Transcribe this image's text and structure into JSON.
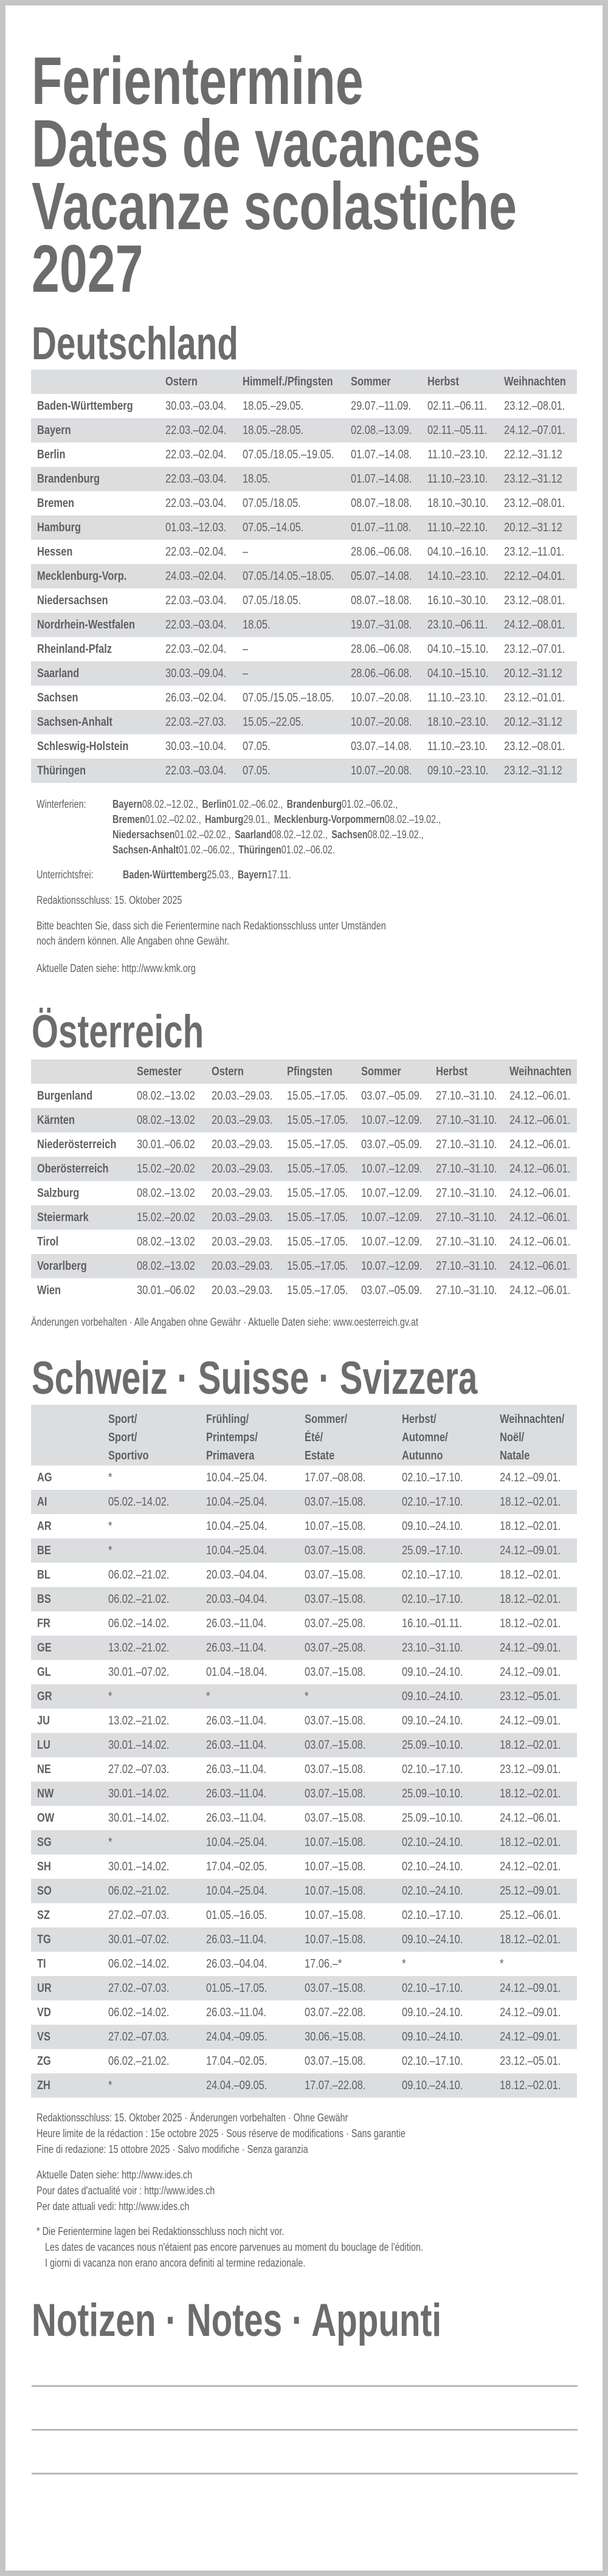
{
  "title": {
    "lines": [
      "Ferientermine",
      "Dates de vacances",
      "Vacanze scolastiche",
      "2027"
    ]
  },
  "colors": {
    "frame": "#c4c5c7",
    "text": "#6b6c6e",
    "row_stripe": "#dcdddf"
  },
  "deutschland": {
    "heading": "Deutschland",
    "headers": [
      "",
      "Ostern",
      "Himmelf./Pfingsten",
      "Sommer",
      "Herbst",
      "Weihnachten"
    ],
    "rows": [
      [
        "Baden-Württemberg",
        "30.03.–03.04.",
        "18.05.–29.05.",
        "29.07.–11.09.",
        "02.11.–06.11.",
        "23.12.–08.01."
      ],
      [
        "Bayern",
        "22.03.–02.04.",
        "18.05.–28.05.",
        "02.08.–13.09.",
        "02.11.–05.11.",
        "24.12.–07.01."
      ],
      [
        "Berlin",
        "22.03.–02.04.",
        "07.05./18.05.–19.05.",
        "01.07.–14.08.",
        "11.10.–23.10.",
        "22.12.–31.12"
      ],
      [
        "Brandenburg",
        "22.03.–03.04.",
        "18.05.",
        "01.07.–14.08.",
        "11.10.–23.10.",
        "23.12.–31.12"
      ],
      [
        "Bremen",
        "22.03.–03.04.",
        "07.05./18.05.",
        "08.07.–18.08.",
        "18.10.–30.10.",
        "23.12.–08.01."
      ],
      [
        "Hamburg",
        "01.03.–12.03.",
        "07.05.–14.05.",
        "01.07.–11.08.",
        "11.10.–22.10.",
        "20.12.–31.12"
      ],
      [
        "Hessen",
        "22.03.–02.04.",
        "–",
        "28.06.–06.08.",
        "04.10.–16.10.",
        "23.12.–11.01."
      ],
      [
        "Mecklenburg-Vorp.",
        "24.03.–02.04.",
        "07.05./14.05.–18.05.",
        "05.07.–14.08.",
        "14.10.–23.10.",
        "22.12.–04.01."
      ],
      [
        "Niedersachsen",
        "22.03.–03.04.",
        "07.05./18.05.",
        "08.07.–18.08.",
        "16.10.–30.10.",
        "23.12.–08.01."
      ],
      [
        "Nordrhein-Westfalen",
        "22.03.–03.04.",
        "18.05.",
        "19.07.–31.08.",
        "23.10.–06.11.",
        "24.12.–08.01."
      ],
      [
        "Rheinland-Pfalz",
        "22.03.–02.04.",
        "–",
        "28.06.–06.08.",
        "04.10.–15.10.",
        "23.12.–07.01."
      ],
      [
        "Saarland",
        "30.03.–09.04.",
        "–",
        "28.06.–06.08.",
        "04.10.–15.10.",
        "20.12.–31.12"
      ],
      [
        "Sachsen",
        "26.03.–02.04.",
        "07.05./15.05.–18.05.",
        "10.07.–20.08.",
        "11.10.–23.10.",
        "23.12.–01.01."
      ],
      [
        "Sachsen-Anhalt",
        "22.03.–27.03.",
        "15.05.–22.05.",
        "10.07.–20.08.",
        "18.10.–23.10.",
        "20.12.–31.12"
      ],
      [
        "Schleswig-Holstein",
        "30.03.–10.04.",
        "07.05.",
        "03.07.–14.08.",
        "11.10.–23.10.",
        "23.12.–08.01."
      ],
      [
        "Thüringen",
        "22.03.–03.04.",
        "07.05.",
        "10.07.–20.08.",
        "09.10.–23.10.",
        "23.12.–31.12"
      ]
    ],
    "winter_label": "Winterferien:",
    "winter_lines": [
      [
        [
          "Bayern",
          "08.02.–12.02.,"
        ],
        [
          "Berlin",
          "01.02.–06.02.,"
        ],
        [
          "Brandenburg",
          "01.02.–06.02.,"
        ]
      ],
      [
        [
          "Bremen",
          "01.02.–02.02.,"
        ],
        [
          "Hamburg",
          "29.01.,"
        ],
        [
          "Mecklenburg-Vorpommern",
          "08.02.–19.02.,"
        ]
      ],
      [
        [
          "Niedersachsen",
          "01.02.–02.02.,"
        ],
        [
          "Saarland",
          "08.02.–12.02.,"
        ],
        [
          "Sachsen",
          "08.02.–19.02.,"
        ]
      ],
      [
        [
          "Sachsen-Anhalt",
          "01.02.–06.02.,"
        ],
        [
          "Thüringen",
          "01.02.–06.02."
        ]
      ]
    ],
    "unterrichtsfrei_label": "Unterrichtsfrei:",
    "unterrichtsfrei": [
      [
        "Baden-Württemberg",
        "25.03.,"
      ],
      [
        "Bayern",
        "17.11."
      ]
    ],
    "redaktionsschluss": "Redaktionsschluss: 15. Oktober 2025",
    "hinweis": [
      "Bitte beachten Sie, dass sich die Ferientermine nach Redaktionsschluss unter Umständen",
      "noch ändern können. Alle Angaben ohne Gewähr."
    ],
    "aktuell": "Aktuelle Daten siehe: http://www.kmk.org"
  },
  "oesterreich": {
    "heading": "Österreich",
    "headers": [
      "",
      "Semester",
      "Ostern",
      "Pfingsten",
      "Sommer",
      "Herbst",
      "Weihnachten"
    ],
    "rows": [
      [
        "Burgenland",
        "08.02.–13.02",
        "20.03.–29.03.",
        "15.05.–17.05.",
        "03.07.–05.09.",
        "27.10.–31.10.",
        "24.12.–06.01."
      ],
      [
        "Kärnten",
        "08.02.–13.02",
        "20.03.–29.03.",
        "15.05.–17.05.",
        "10.07.–12.09.",
        "27.10.–31.10.",
        "24.12.–06.01."
      ],
      [
        "Niederösterreich",
        "30.01.–06.02",
        "20.03.–29.03.",
        "15.05.–17.05.",
        "03.07.–05.09.",
        "27.10.–31.10.",
        "24.12.–06.01."
      ],
      [
        "Oberösterreich",
        "15.02.–20.02",
        "20.03.–29.03.",
        "15.05.–17.05.",
        "10.07.–12.09.",
        "27.10.–31.10.",
        "24.12.–06.01."
      ],
      [
        "Salzburg",
        "08.02.–13.02",
        "20.03.–29.03.",
        "15.05.–17.05.",
        "10.07.–12.09.",
        "27.10.–31.10.",
        "24.12.–06.01."
      ],
      [
        "Steiermark",
        "15.02.–20.02",
        "20.03.–29.03.",
        "15.05.–17.05.",
        "10.07.–12.09.",
        "27.10.–31.10.",
        "24.12.–06.01."
      ],
      [
        "Tirol",
        "08.02.–13.02",
        "20.03.–29.03.",
        "15.05.–17.05.",
        "10.07.–12.09.",
        "27.10.–31.10.",
        "24.12.–06.01."
      ],
      [
        "Vorarlberg",
        "08.02.–13.02",
        "20.03.–29.03.",
        "15.05.–17.05.",
        "10.07.–12.09.",
        "27.10.–31.10.",
        "24.12.–06.01."
      ],
      [
        "Wien",
        "30.01.–06.02",
        "20.03.–29.03.",
        "15.05.–17.05.",
        "03.07.–05.09.",
        "27.10.–31.10.",
        "24.12.–06.01."
      ]
    ],
    "footer": "Änderungen vorbehalten · Alle Angaben ohne Gewähr · Aktuelle Daten siehe: www.oesterreich.gv.at"
  },
  "schweiz": {
    "heading": "Schweiz · Suisse · Svizzera",
    "headers": [
      [],
      [
        "Sport/",
        "Sport/",
        "Sportivo"
      ],
      [
        "Frühling/",
        "Printemps/",
        "Primavera"
      ],
      [
        "Sommer/",
        "Été/",
        "Estate"
      ],
      [
        "Herbst/",
        "Automne/",
        "Autunno"
      ],
      [
        "Weihnachten/",
        "Noël/",
        "Natale"
      ]
    ],
    "rows": [
      [
        "AG",
        "*",
        "10.04.–25.04.",
        "17.07.–08.08.",
        "02.10.–17.10.",
        "24.12.–09.01."
      ],
      [
        "AI",
        "05.02.–14.02.",
        "10.04.–25.04.",
        "03.07.–15.08.",
        "02.10.–17.10.",
        "18.12.–02.01."
      ],
      [
        "AR",
        "*",
        "10.04.–25.04.",
        "10.07.–15.08.",
        "09.10.–24.10.",
        "18.12.–02.01."
      ],
      [
        "BE",
        "*",
        "10.04.–25.04.",
        "03.07.–15.08.",
        "25.09.–17.10.",
        "24.12.–09.01."
      ],
      [
        "BL",
        "06.02.–21.02.",
        "20.03.–04.04.",
        "03.07.–15.08.",
        "02.10.–17.10.",
        "18.12.–02.01."
      ],
      [
        "BS",
        "06.02.–21.02.",
        "20.03.–04.04.",
        "03.07.–15.08.",
        "02.10.–17.10.",
        "18.12.–02.01."
      ],
      [
        "FR",
        "06.02.–14.02.",
        "26.03.–11.04.",
        "03.07.–25.08.",
        "16.10.–01.11.",
        "18.12.–02.01."
      ],
      [
        "GE",
        "13.02.–21.02.",
        "26.03.–11.04.",
        "03.07.–25.08.",
        "23.10.–31.10.",
        "24.12.–09.01."
      ],
      [
        "GL",
        "30.01.–07.02.",
        "01.04.–18.04.",
        "03.07.–15.08.",
        "09.10.–24.10.",
        "24.12.–09.01."
      ],
      [
        "GR",
        "*",
        "*",
        "*",
        "09.10.–24.10.",
        "23.12.–05.01."
      ],
      [
        "JU",
        "13.02.–21.02.",
        "26.03.–11.04.",
        "03.07.–15.08.",
        "09.10.–24.10.",
        "24.12.–09.01."
      ],
      [
        "LU",
        "30.01.–14.02.",
        "26.03.–11.04.",
        "03.07.–15.08.",
        "25.09.–10.10.",
        "18.12.–02.01."
      ],
      [
        "NE",
        "27.02.–07.03.",
        "26.03.–11.04.",
        "03.07.–15.08.",
        "02.10.–17.10.",
        "23.12.–09.01."
      ],
      [
        "NW",
        "30.01.–14.02.",
        "26.03.–11.04.",
        "03.07.–15.08.",
        "25.09.–10.10.",
        "18.12.–02.01."
      ],
      [
        "OW",
        "30.01.–14.02.",
        "26.03.–11.04.",
        "03.07.–15.08.",
        "25.09.–10.10.",
        "24.12.–06.01."
      ],
      [
        "SG",
        "*",
        "10.04.–25.04.",
        "10.07.–15.08.",
        "02.10.–24.10.",
        "18.12.–02.01."
      ],
      [
        "SH",
        "30.01.–14.02.",
        "17.04.–02.05.",
        "10.07.–15.08.",
        "02.10.–24.10.",
        "24.12.–02.01."
      ],
      [
        "SO",
        "06.02.–21.02.",
        "10.04.–25.04.",
        "10.07.–15.08.",
        "02.10.–24.10.",
        "25.12.–09.01."
      ],
      [
        "SZ",
        "27.02.–07.03.",
        "01.05.–16.05.",
        "10.07.–15.08.",
        "02.10.–17.10.",
        "25.12.–06.01."
      ],
      [
        "TG",
        "30.01.–07.02.",
        "26.03.–11.04.",
        "10.07.–15.08.",
        "09.10.–24.10.",
        "18.12.–02.01."
      ],
      [
        "TI",
        "06.02.–14.02.",
        "26.03.–04.04.",
        "17.06.–*",
        "*",
        "*"
      ],
      [
        "UR",
        "27.02.–07.03.",
        "01.05.–17.05.",
        "03.07.–15.08.",
        "02.10.–17.10.",
        "24.12.–09.01."
      ],
      [
        "VD",
        "06.02.–14.02.",
        "26.03.–11.04.",
        "03.07.–22.08.",
        "09.10.–24.10.",
        "24.12.–09.01."
      ],
      [
        "VS",
        "27.02.–07.03.",
        "24.04.–09.05.",
        "30.06.–15.08.",
        "09.10.–24.10.",
        "24.12.–09.01."
      ],
      [
        "ZG",
        "06.02.–21.02.",
        "17.04.–02.05.",
        "03.07.–15.08.",
        "02.10.–17.10.",
        "23.12.–05.01."
      ],
      [
        "ZH",
        "*",
        "24.04.–09.05.",
        "17.07.–22.08.",
        "09.10.–24.10.",
        "18.12.–02.01."
      ]
    ],
    "redaktion_lines": [
      "Redaktionsschluss: 15. Oktober 2025 · Änderungen vorbehalten · Ohne Gewähr",
      "Heure limite de la rédaction : 15e octobre 2025 · Sous réserve de modifications · Sans garantie",
      "Fine di redazione: 15 ottobre 2025 · Salvo modifiche · Senza garanzia"
    ],
    "aktuell_lines": [
      "Aktuelle Daten siehe: http://www.ides.ch",
      "Pour dates d'actualité voir : http://www.ides.ch",
      "Per date attuali vedi: http://www.ides.ch"
    ],
    "footnote_lines": [
      "* Die Ferientermine lagen bei Redaktionsschluss noch nicht vor.",
      "Les dates de vacances nous n'étaient pas encore parvenues au moment du bouclage de l'édition.",
      "I giorni di vacanza non erano ancora definiti al termine redazionale."
    ]
  },
  "notizen": {
    "heading": "Notizen · Notes · Appunti"
  }
}
